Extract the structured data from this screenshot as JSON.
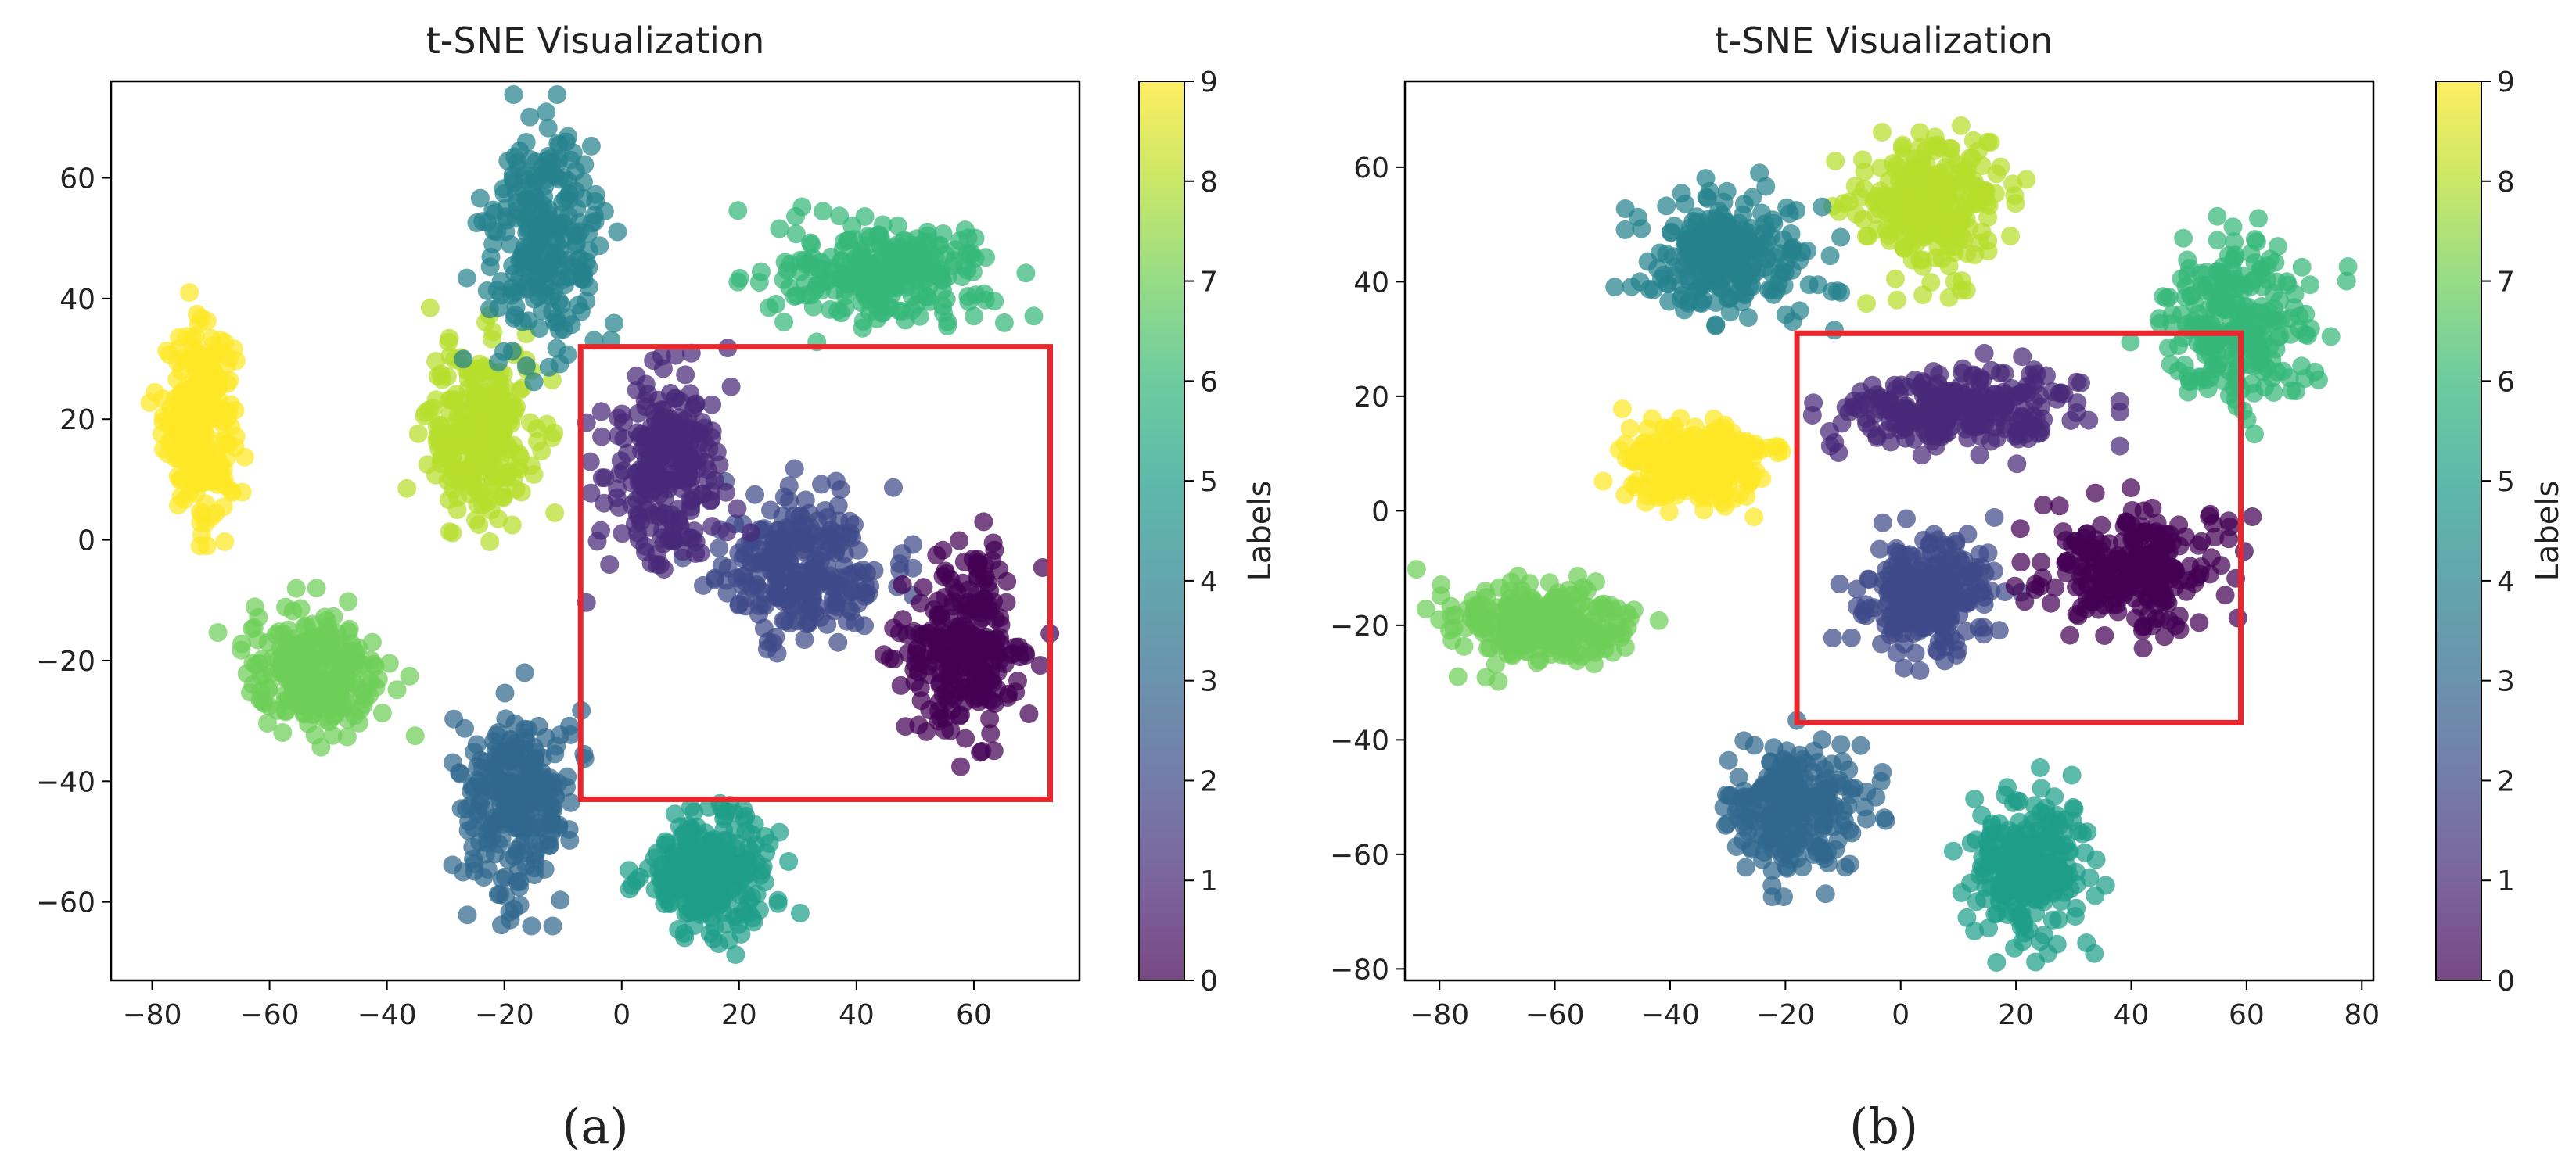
{
  "chart_data": [
    {
      "type": "scatter",
      "title": "t-SNE Visualization",
      "caption": "(a)",
      "xlabel": "",
      "ylabel": "",
      "xlim": [
        -87,
        78
      ],
      "ylim": [
        -73,
        76
      ],
      "xticks": [
        -80,
        -60,
        -40,
        -20,
        0,
        20,
        40,
        60
      ],
      "yticks": [
        -60,
        -40,
        -20,
        0,
        20,
        40,
        60
      ],
      "grid": false,
      "colorbar": {
        "label": "Labels",
        "min": 0,
        "max": 9,
        "ticks": [
          0,
          1,
          2,
          3,
          4,
          5,
          6,
          7,
          8,
          9
        ],
        "colormap": "viridis",
        "alpha": 0.72
      },
      "highlight_box": {
        "x0": -7,
        "x1": 73,
        "y0": -43,
        "y1": 32,
        "color": "#e8262d"
      },
      "clusters": [
        {
          "label": 9,
          "cx": -72,
          "cy": 20,
          "rx": 6,
          "ry": 15
        },
        {
          "label": 8,
          "cx": -24,
          "cy": 18,
          "rx": 9,
          "ry": 15
        },
        {
          "label": 7,
          "cx": -52,
          "cy": -22,
          "rx": 12,
          "ry": 10
        },
        {
          "label": 6,
          "cx": 45,
          "cy": 44,
          "rx": 18,
          "ry": 8
        },
        {
          "label": 5,
          "cx": 15,
          "cy": -55,
          "rx": 11,
          "ry": 10
        },
        {
          "label": 4,
          "cx": -13,
          "cy": 50,
          "rx": 10,
          "ry": 17
        },
        {
          "label": 3,
          "cx": -18,
          "cy": -43,
          "rx": 9,
          "ry": 15
        },
        {
          "label": 2,
          "cx": 30,
          "cy": -5,
          "rx": 14,
          "ry": 12
        },
        {
          "label": 1,
          "cx": 8,
          "cy": 12,
          "rx": 10,
          "ry": 16
        },
        {
          "label": 0,
          "cx": 58,
          "cy": -18,
          "rx": 11,
          "ry": 15
        }
      ]
    },
    {
      "type": "scatter",
      "title": "t-SNE Visualization",
      "caption": "(b)",
      "xlabel": "",
      "ylabel": "",
      "xlim": [
        -86,
        82
      ],
      "ylim": [
        -82,
        75
      ],
      "xticks": [
        -80,
        -60,
        -40,
        -20,
        0,
        20,
        40,
        60,
        80
      ],
      "yticks": [
        -80,
        -60,
        -40,
        -20,
        0,
        20,
        40,
        60
      ],
      "grid": false,
      "colorbar": {
        "label": "Labels",
        "min": 0,
        "max": 9,
        "ticks": [
          0,
          1,
          2,
          3,
          4,
          5,
          6,
          7,
          8,
          9
        ],
        "colormap": "viridis",
        "alpha": 0.72
      },
      "highlight_box": {
        "x0": -18,
        "x1": 59,
        "y0": -37,
        "y1": 31,
        "color": "#e8262d"
      },
      "clusters": [
        {
          "label": 9,
          "cx": -35,
          "cy": 8,
          "rx": 12,
          "ry": 7
        },
        {
          "label": 8,
          "cx": 5,
          "cy": 53,
          "rx": 12,
          "ry": 12
        },
        {
          "label": 7,
          "cx": -63,
          "cy": -20,
          "rx": 16,
          "ry": 7
        },
        {
          "label": 6,
          "cx": 58,
          "cy": 33,
          "rx": 14,
          "ry": 14
        },
        {
          "label": 5,
          "cx": 22,
          "cy": -62,
          "rx": 11,
          "ry": 13
        },
        {
          "label": 4,
          "cx": -30,
          "cy": 45,
          "rx": 14,
          "ry": 10
        },
        {
          "label": 3,
          "cx": -18,
          "cy": -52,
          "rx": 11,
          "ry": 11
        },
        {
          "label": 2,
          "cx": 5,
          "cy": -15,
          "rx": 12,
          "ry": 10
        },
        {
          "label": 1,
          "cx": 10,
          "cy": 18,
          "rx": 20,
          "ry": 7
        },
        {
          "label": 0,
          "cx": 40,
          "cy": -10,
          "rx": 15,
          "ry": 10
        }
      ]
    }
  ]
}
